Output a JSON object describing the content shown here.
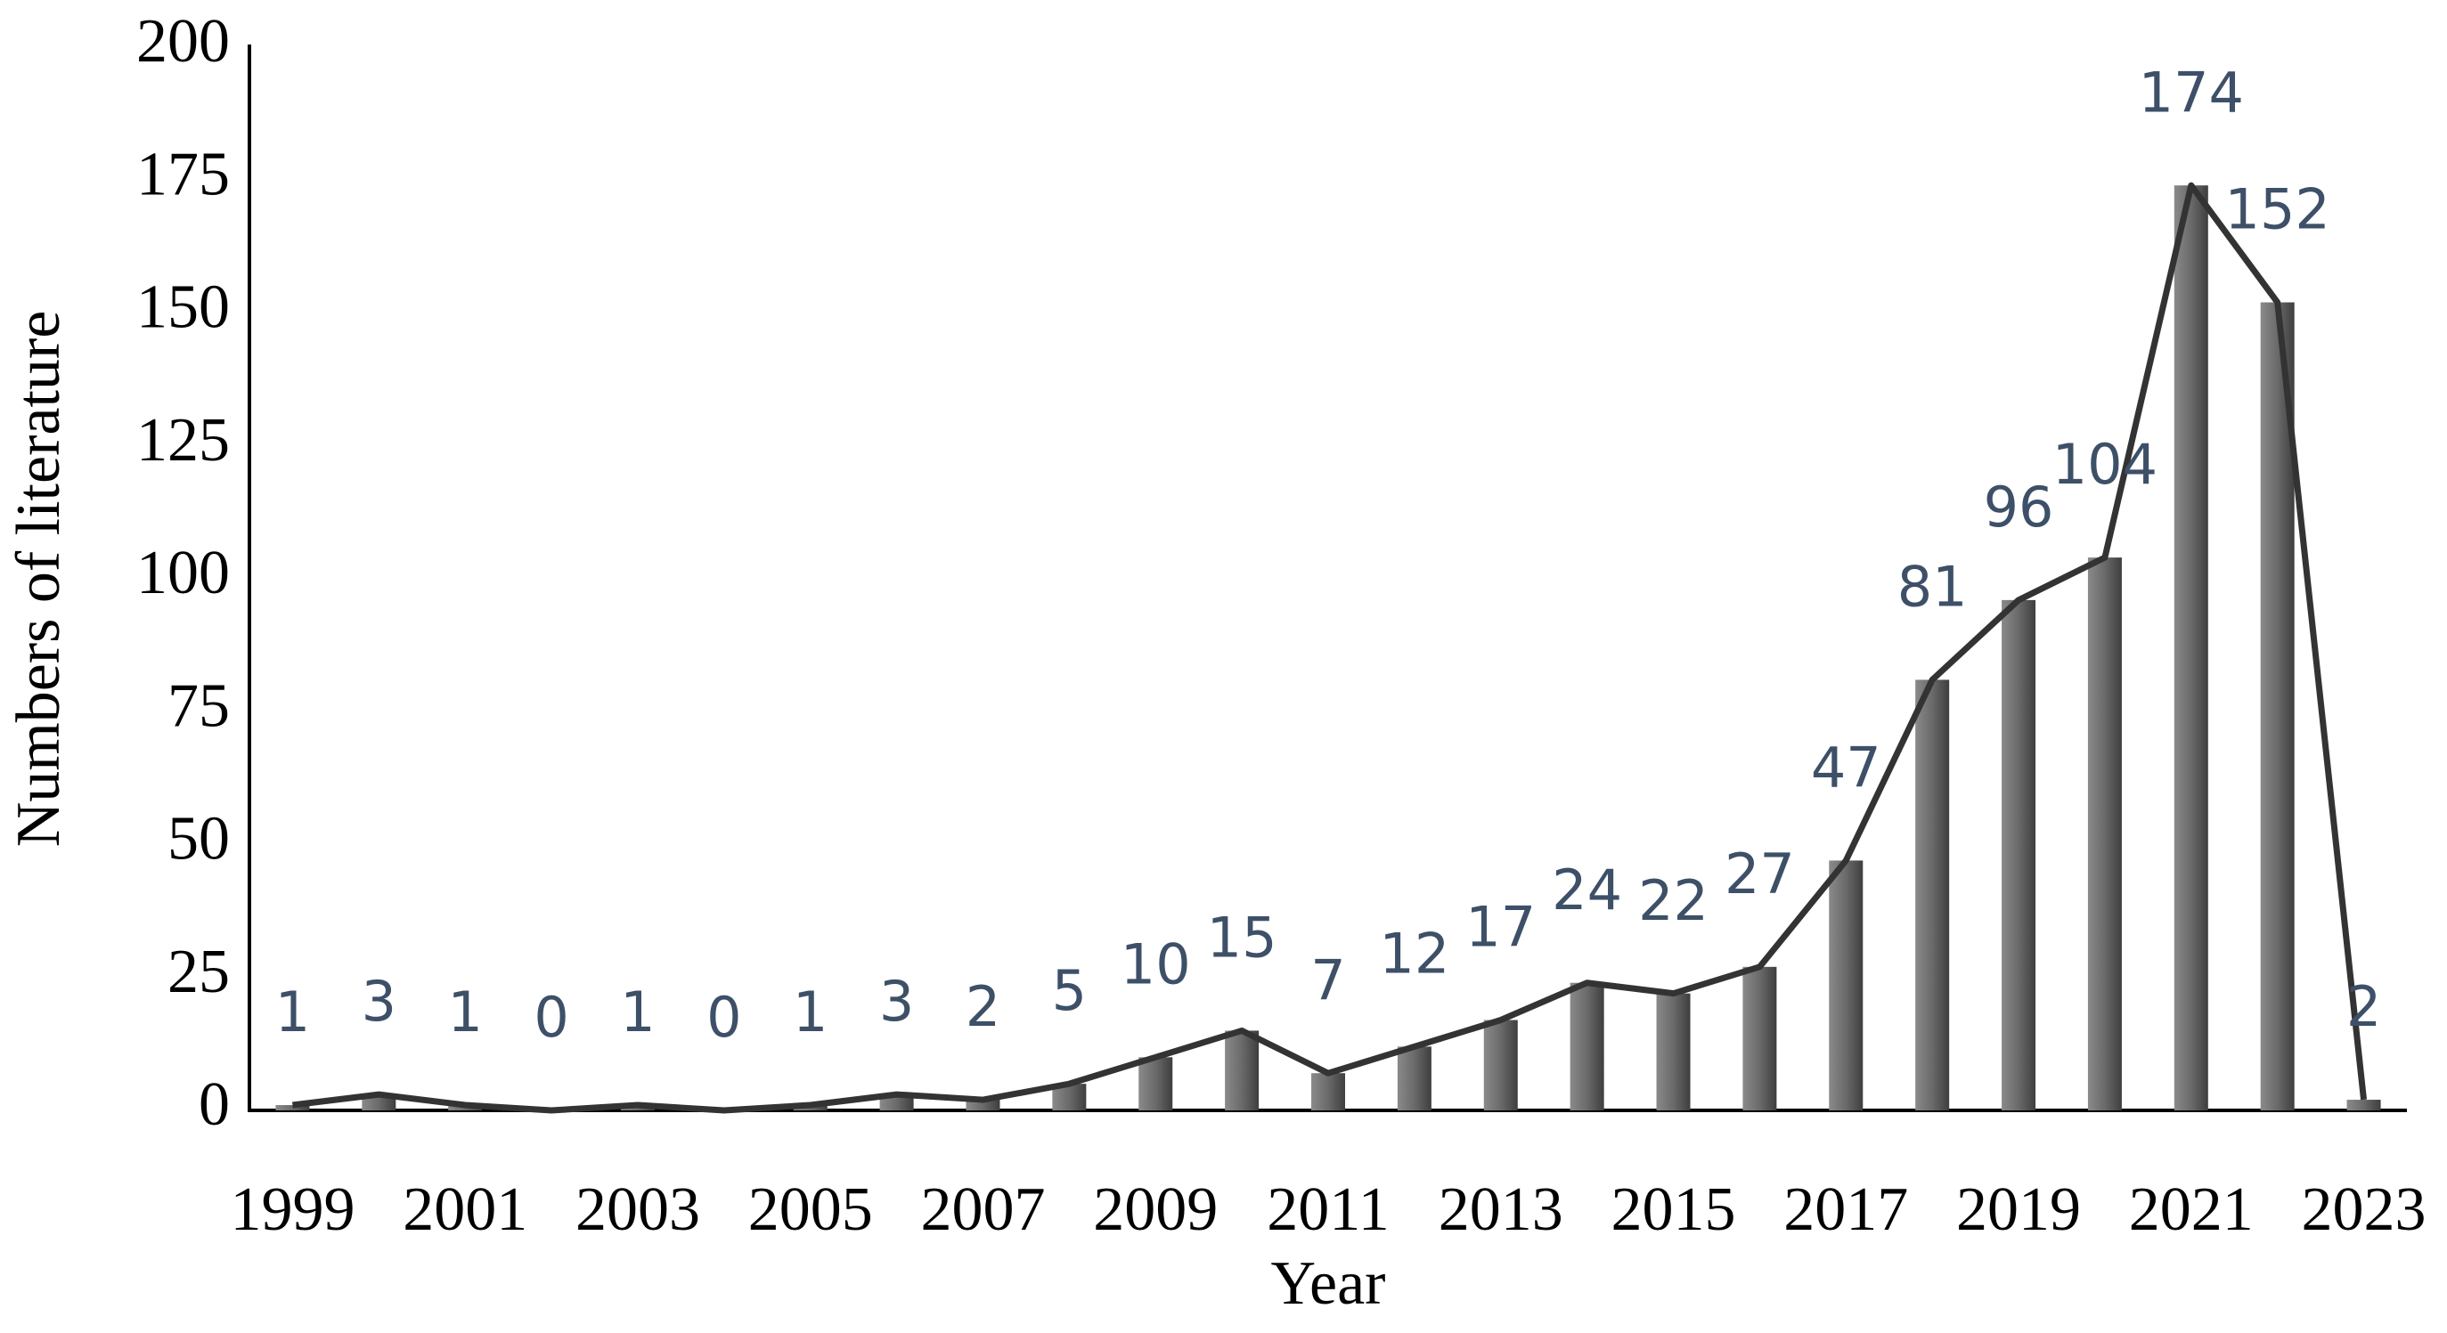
{
  "chart_data": {
    "type": "bar",
    "x_label": "Year",
    "y_label": "Numbers of literature",
    "categories": [
      "1999",
      null,
      "2001",
      null,
      "2003",
      null,
      "2005",
      null,
      "2007",
      null,
      "2009",
      null,
      "2011",
      null,
      "2013",
      null,
      "2015",
      null,
      "2017",
      null,
      "2019",
      null,
      "2021",
      null,
      "2023"
    ],
    "values": [
      1,
      3,
      1,
      0,
      1,
      0,
      1,
      3,
      2,
      5,
      10,
      15,
      7,
      12,
      17,
      24,
      22,
      27,
      47,
      81,
      96,
      104,
      174,
      152,
      2
    ],
    "color": "#5e5e5e",
    "line_color": "#333333",
    "label_color": "#3d5068",
    "show_line": true,
    "show_value_labels": true,
    "ylim": [
      0,
      200
    ],
    "yticks": [
      0,
      25,
      50,
      75,
      100,
      125,
      150,
      175,
      200
    ],
    "grid": false
  }
}
